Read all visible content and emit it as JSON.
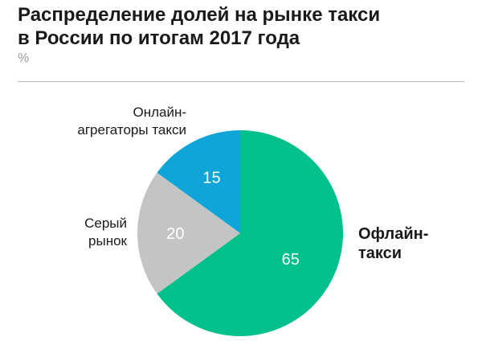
{
  "header": {
    "title_line1": "Распределение долей на рынке такси",
    "title_line2": "в России по итогам 2017 года",
    "unit": "%"
  },
  "chart_data": {
    "type": "pie",
    "title": "Распределение долей на рынке такси в России по итогам 2017 года",
    "unit": "%",
    "slices": [
      {
        "label": [
          "Офлайн-",
          "такси"
        ],
        "value": 65,
        "color": "#00c08b"
      },
      {
        "label": [
          "Серый",
          "рынок"
        ],
        "value": 20,
        "color": "#c4c4c4"
      },
      {
        "label": [
          "Онлайн-",
          "агрегаторы такси"
        ],
        "value": 15,
        "color": "#10a5d8"
      }
    ]
  }
}
